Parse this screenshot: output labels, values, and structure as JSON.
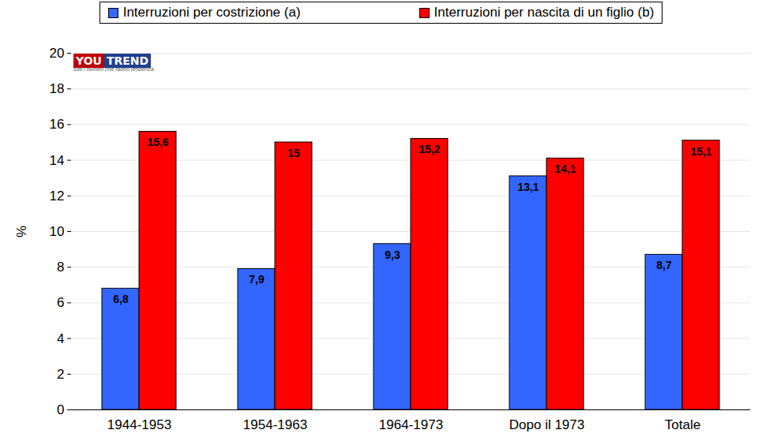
{
  "chart_data": {
    "type": "bar",
    "y_label": "%",
    "annotations": [
      "YOU TREND",
      "tutti i numeri che fanno tendenza"
    ],
    "categories": [
      "1944-1953",
      "1954-1963",
      "1964-1973",
      "Dopo il 1973",
      "Totale"
    ],
    "series": [
      {
        "name": "Interruzioni per costrizione (a)",
        "color": "#3366ff",
        "values": [
          6.8,
          7.9,
          9.3,
          13.1,
          8.7
        ],
        "value_labels": [
          "6,8",
          "7,9",
          "9,3",
          "13,1",
          "8,7"
        ]
      },
      {
        "name": "Interruzioni per nascita di un figlio (b)",
        "color": "#ff0000",
        "values": [
          15.6,
          15,
          15.2,
          14.1,
          15.1
        ],
        "value_labels": [
          "15,6",
          "15",
          "15,2",
          "14,1",
          "15,1"
        ]
      }
    ],
    "ylim": [
      0,
      20
    ],
    "yticks": [
      0,
      2,
      4,
      6,
      8,
      10,
      12,
      14,
      16,
      18,
      20
    ],
    "grid": true,
    "legend": "top",
    "data_labels": true
  }
}
